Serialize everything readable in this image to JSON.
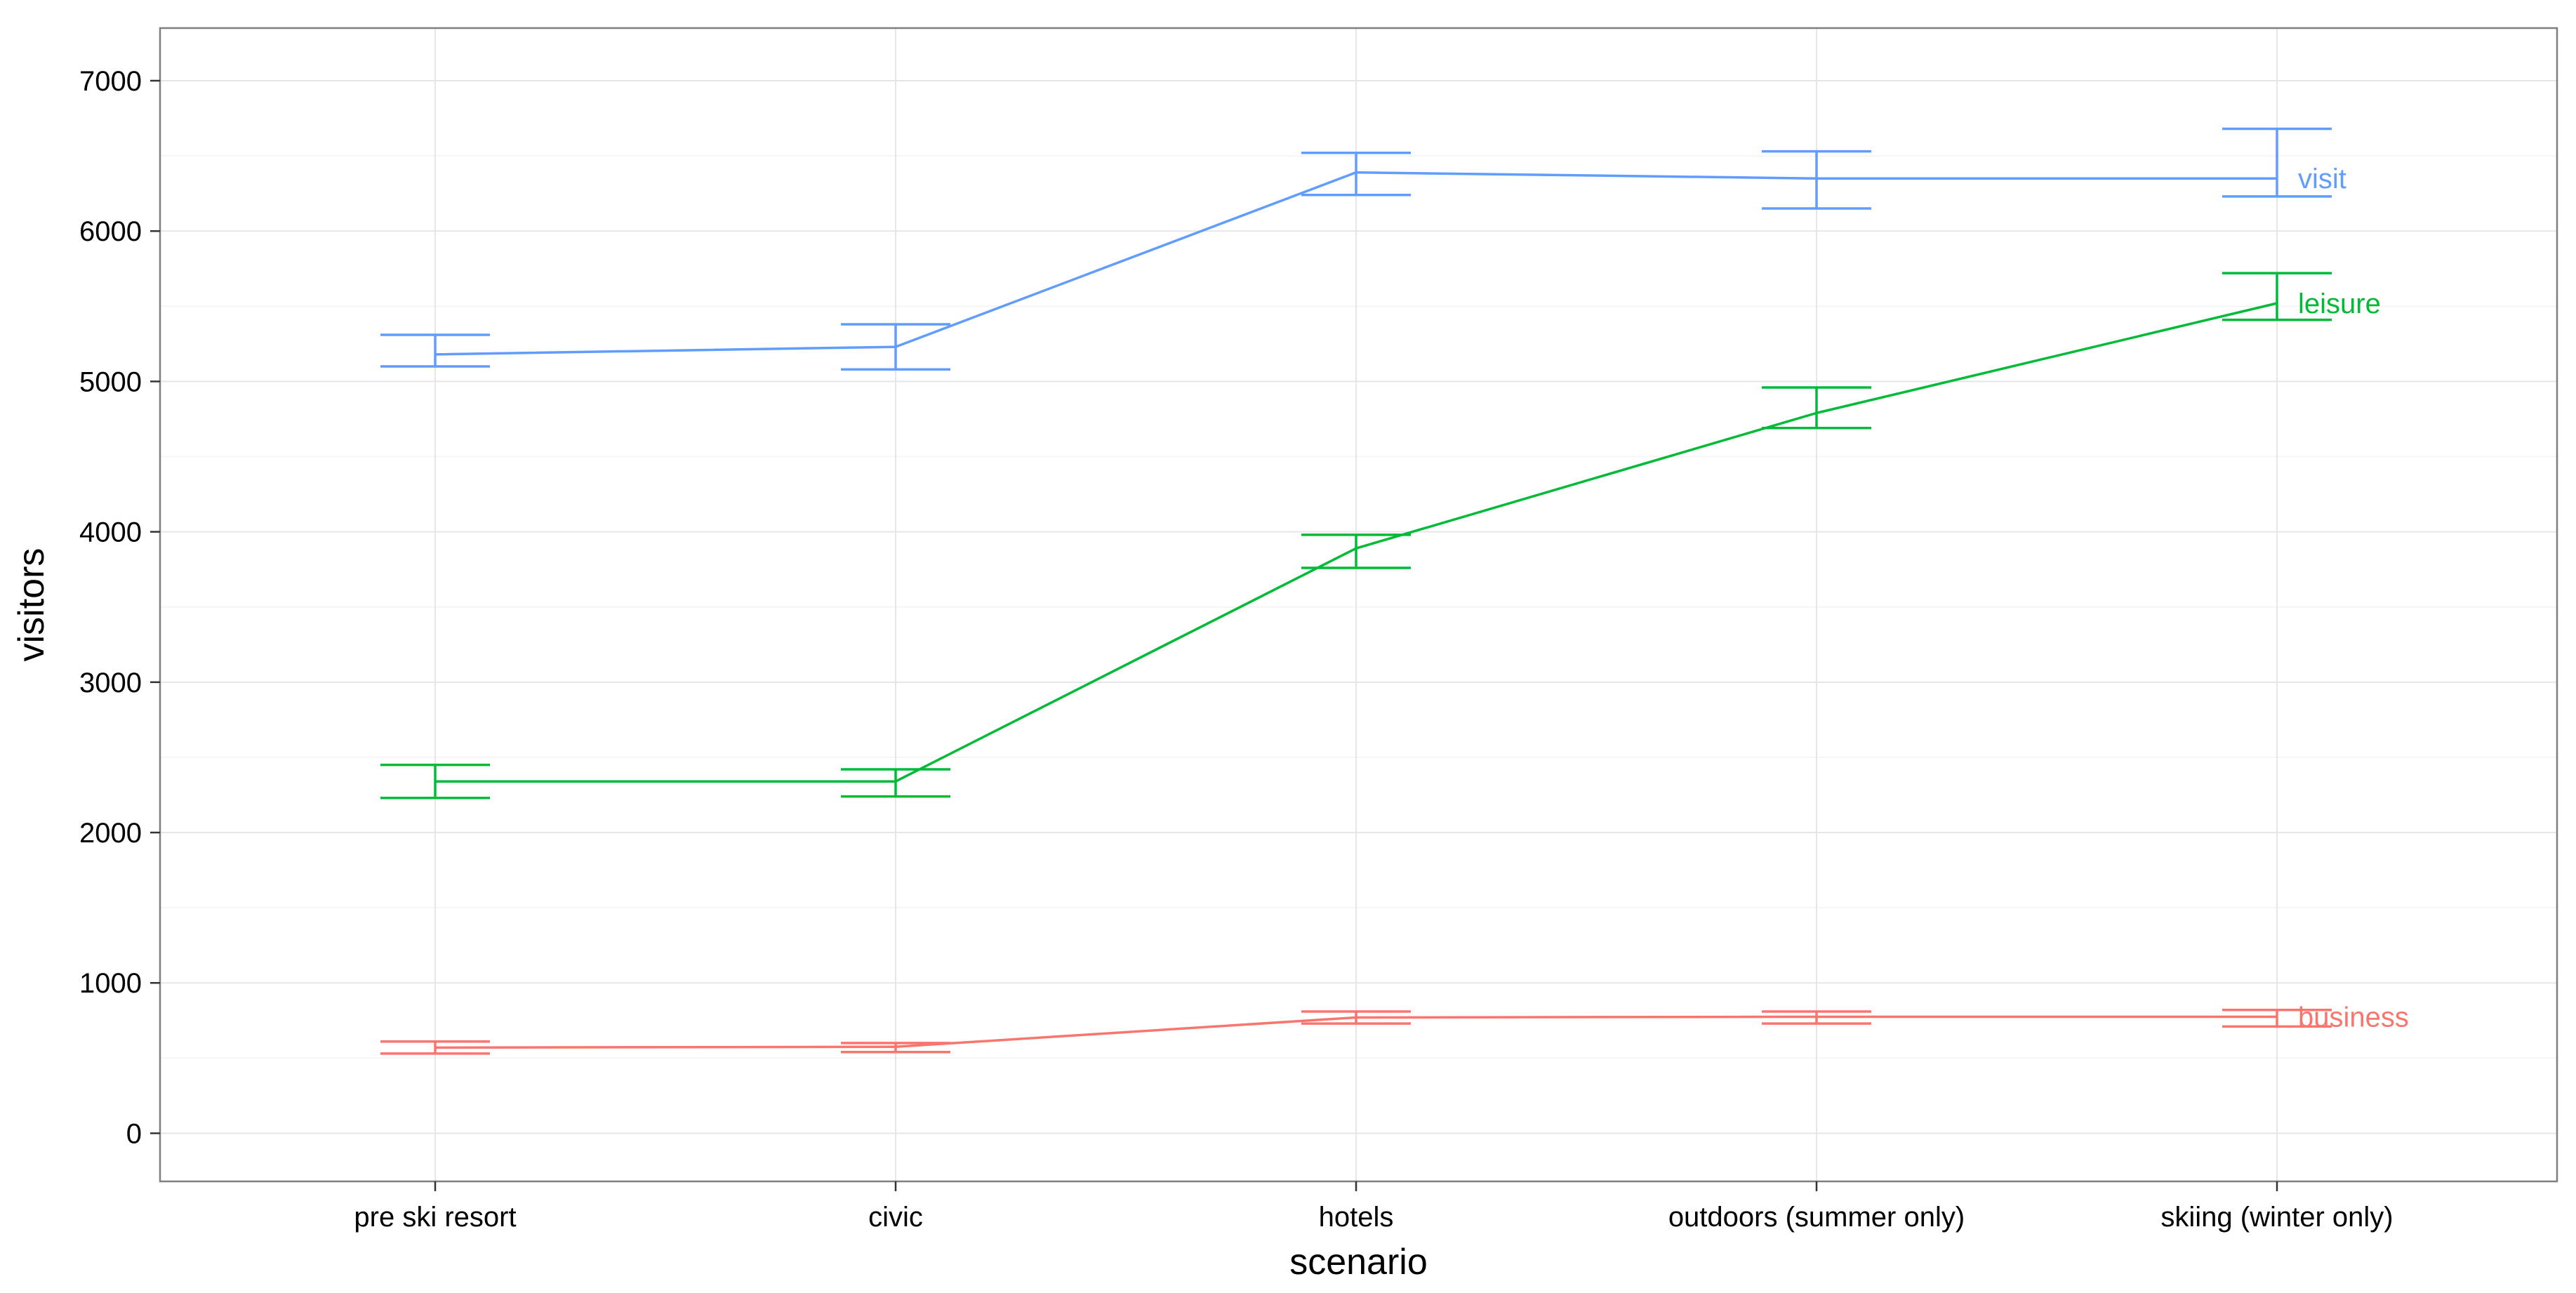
{
  "chart_data": {
    "type": "line",
    "title": "",
    "xlabel": "scenario",
    "ylabel": "visitors",
    "categories": [
      "pre ski resort",
      "civic",
      "hotels",
      "outdoors (summer only)",
      "skiing (winter only)"
    ],
    "ylim": [
      -320,
      7350
    ],
    "yticks": [
      0,
      1000,
      2000,
      3000,
      4000,
      5000,
      6000,
      7000
    ],
    "ytick_labels": [
      "0",
      "1000",
      "2000",
      "3000",
      "4000",
      "5000",
      "6000",
      "7000"
    ],
    "grid": true,
    "legend": "none",
    "series": [
      {
        "name": "visit",
        "color": "#619CFF",
        "values": [
          5180,
          5230,
          6390,
          6350,
          6350
        ],
        "lower": [
          5100,
          5080,
          6240,
          6150,
          6230
        ],
        "upper": [
          5310,
          5380,
          6520,
          6530,
          6680
        ]
      },
      {
        "name": "leisure",
        "color": "#00BA38",
        "values": [
          2340,
          2340,
          3890,
          4790,
          5520
        ],
        "lower": [
          2230,
          2240,
          3760,
          4690,
          5410
        ],
        "upper": [
          2450,
          2420,
          3980,
          4960,
          5720
        ]
      },
      {
        "name": "business",
        "color": "#F8766D",
        "values": [
          570,
          575,
          770,
          775,
          775
        ],
        "lower": [
          530,
          540,
          730,
          730,
          710
        ],
        "upper": [
          610,
          600,
          810,
          810,
          820
        ]
      }
    ]
  }
}
